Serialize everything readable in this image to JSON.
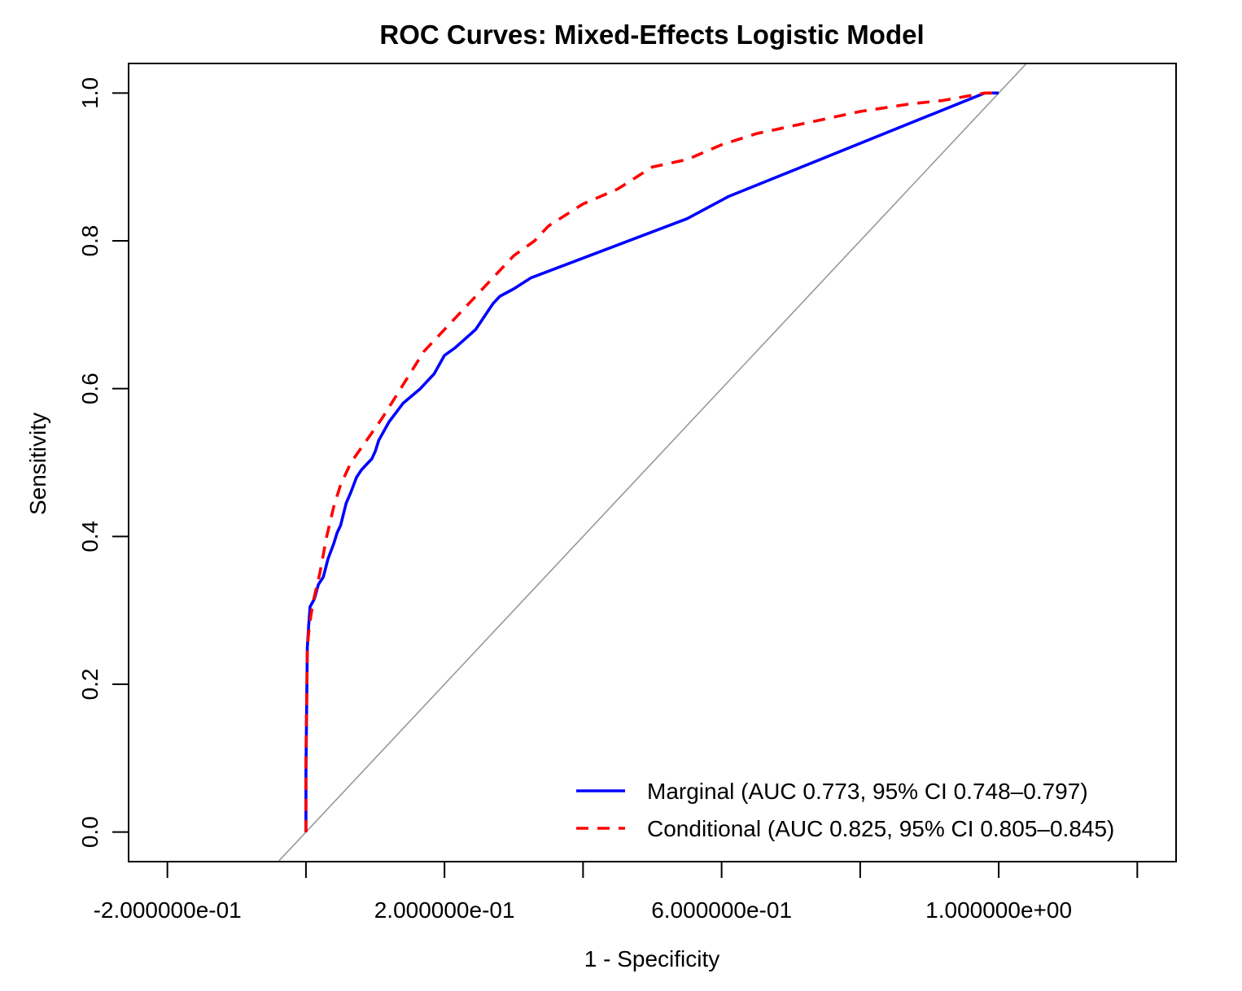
{
  "chart_data": {
    "type": "line",
    "title": "ROC Curves: Mixed-Effects Logistic Model",
    "xlabel": "1 - Specificity",
    "ylabel": "Sensitivity",
    "xlim": [
      -0.2,
      1.2
    ],
    "ylim": [
      0.0,
      1.0
    ],
    "x_ticks": [
      -0.2,
      0.0,
      0.2,
      0.4,
      0.6,
      0.8,
      1.0,
      1.2
    ],
    "x_tick_labels": [
      {
        "value": -0.2,
        "label": "-2.000000e-01"
      },
      {
        "value": 0.2,
        "label": "2.000000e-01"
      },
      {
        "value": 0.6,
        "label": "6.000000e-01"
      },
      {
        "value": 1.0,
        "label": "1.000000e+00"
      }
    ],
    "y_ticks": [
      {
        "value": 0.0,
        "label": "0.0"
      },
      {
        "value": 0.2,
        "label": "0.2"
      },
      {
        "value": 0.4,
        "label": "0.4"
      },
      {
        "value": 0.6,
        "label": "0.6"
      },
      {
        "value": 0.8,
        "label": "0.8"
      },
      {
        "value": 1.0,
        "label": "1.0"
      }
    ],
    "grid": false,
    "legend_position": "bottom-right",
    "reference_line": {
      "type": "diagonal",
      "color": "#999999"
    },
    "series": [
      {
        "name": "Marginal (AUC 0.773, 95% CI 0.748–0.797)",
        "color": "#0000ff",
        "dash": "solid",
        "x": [
          0.0,
          0.0,
          0.002,
          0.004,
          0.006,
          0.012,
          0.018,
          0.025,
          0.032,
          0.04,
          0.045,
          0.05,
          0.058,
          0.065,
          0.073,
          0.08,
          0.085,
          0.09,
          0.095,
          0.1,
          0.105,
          0.12,
          0.14,
          0.165,
          0.185,
          0.2,
          0.215,
          0.245,
          0.27,
          0.28,
          0.3,
          0.325,
          0.55,
          0.61,
          0.98,
          1.0
        ],
        "y": [
          0.0,
          0.08,
          0.25,
          0.28,
          0.305,
          0.315,
          0.335,
          0.345,
          0.37,
          0.39,
          0.405,
          0.415,
          0.445,
          0.46,
          0.48,
          0.49,
          0.495,
          0.5,
          0.505,
          0.515,
          0.53,
          0.555,
          0.58,
          0.6,
          0.62,
          0.645,
          0.655,
          0.68,
          0.715,
          0.725,
          0.735,
          0.75,
          0.83,
          0.86,
          1.0,
          1.0
        ]
      },
      {
        "name": "Conditional (AUC 0.825, 95% CI 0.805–0.845)",
        "color": "#ff0000",
        "dash": "dashed",
        "x": [
          0.0,
          0.0,
          0.002,
          0.005,
          0.01,
          0.02,
          0.03,
          0.04,
          0.05,
          0.065,
          0.08,
          0.095,
          0.11,
          0.13,
          0.15,
          0.17,
          0.2,
          0.22,
          0.24,
          0.27,
          0.3,
          0.33,
          0.35,
          0.4,
          0.45,
          0.5,
          0.55,
          0.6,
          0.65,
          0.7,
          0.75,
          0.8,
          0.87,
          0.92,
          0.98,
          1.0
        ],
        "y": [
          0.0,
          0.1,
          0.25,
          0.28,
          0.31,
          0.35,
          0.4,
          0.44,
          0.47,
          0.5,
          0.52,
          0.54,
          0.56,
          0.59,
          0.62,
          0.65,
          0.68,
          0.7,
          0.72,
          0.75,
          0.78,
          0.8,
          0.82,
          0.85,
          0.87,
          0.9,
          0.91,
          0.93,
          0.945,
          0.955,
          0.965,
          0.975,
          0.985,
          0.99,
          1.0,
          1.0
        ]
      }
    ]
  }
}
